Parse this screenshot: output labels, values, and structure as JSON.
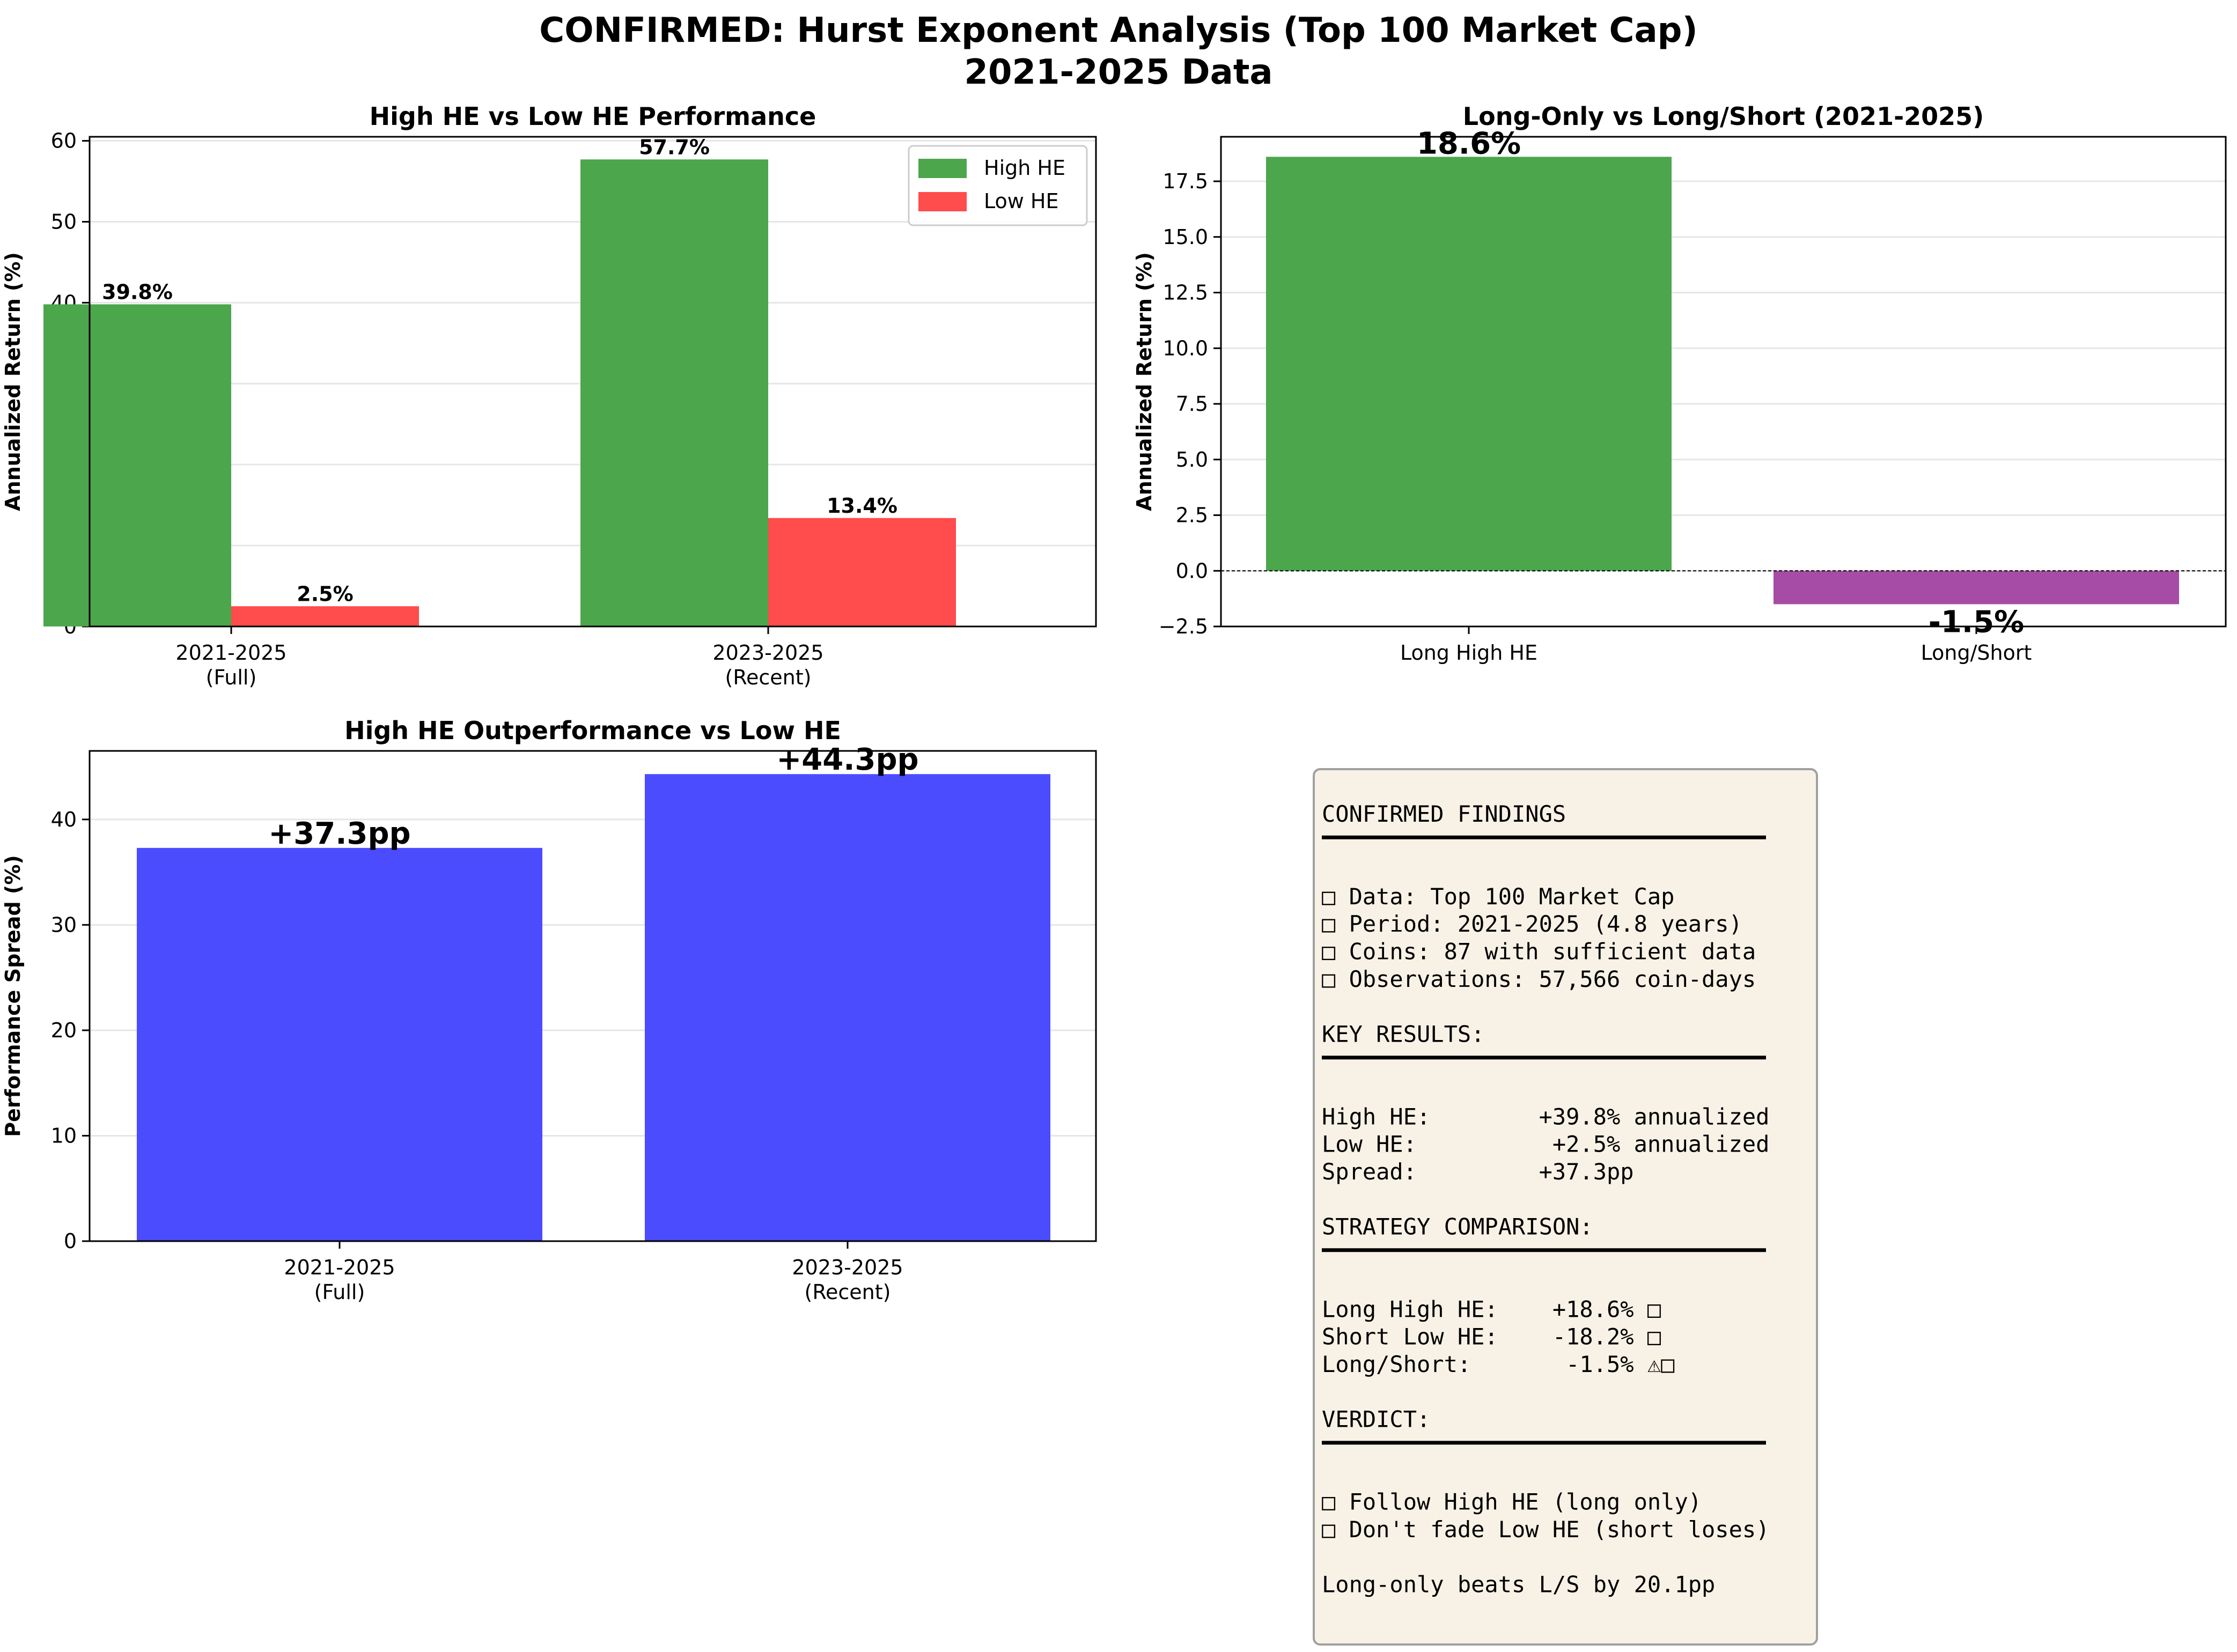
{
  "figure": {
    "title_line1": "CONFIRMED: Hurst Exponent Analysis (Top 100 Market Cap)",
    "title_line2": "2021-2025 Data"
  },
  "colors": {
    "high_he": "#4ca64c",
    "low_he": "#ff4c4c",
    "long_short": "#a64ca6",
    "spread": "#4c4cff",
    "panel_bg": "#f8f2e6",
    "panel_border": "#a0a0a0"
  },
  "chart_data": [
    {
      "id": "performance",
      "type": "bar",
      "title": "High HE vs Low HE Performance",
      "ylabel": "Annualized Return (%)",
      "xlabel": "",
      "categories": [
        "2021-2025\n(Full)",
        "2023-2025\n(Recent)"
      ],
      "series": [
        {
          "name": "High HE",
          "values": [
            39.8,
            57.7
          ],
          "labels": [
            "39.8%",
            "57.7%"
          ]
        },
        {
          "name": "Low HE",
          "values": [
            2.5,
            13.4
          ],
          "labels": [
            "2.5%",
            "13.4%"
          ]
        }
      ],
      "ylim": [
        0,
        60.5
      ],
      "yticks": [
        0,
        10,
        20,
        30,
        40,
        50,
        60
      ],
      "ytick_labels": [
        "0",
        "10",
        "20",
        "30",
        "40",
        "50",
        "60"
      ],
      "grid": "y",
      "legend": "top-right"
    },
    {
      "id": "strategy",
      "type": "bar",
      "title": "Long-Only vs Long/Short (2021-2025)",
      "ylabel": "Annualized Return (%)",
      "xlabel": "",
      "categories": [
        "Long High HE",
        "Long/Short"
      ],
      "values": [
        18.6,
        -1.5
      ],
      "labels": [
        "18.6%",
        "-1.5%"
      ],
      "ylim": [
        -2.5,
        19.5
      ],
      "yticks": [
        -2.5,
        0,
        2.5,
        5,
        7.5,
        10,
        12.5,
        15,
        17.5
      ],
      "ytick_labels": [
        "−2.5",
        "0.0",
        "2.5",
        "5.0",
        "7.5",
        "10.0",
        "12.5",
        "15.0",
        "17.5"
      ],
      "grid": "y",
      "zero_line": true
    },
    {
      "id": "spread",
      "type": "bar",
      "title": "High HE Outperformance vs Low HE",
      "ylabel": "Performance Spread (%)",
      "xlabel": "",
      "categories": [
        "2021-2025\n(Full)",
        "2023-2025\n(Recent)"
      ],
      "values": [
        37.3,
        44.3
      ],
      "labels": [
        "+37.3pp",
        "+44.3pp"
      ],
      "ylim": [
        0,
        46.5
      ],
      "yticks": [
        0,
        10,
        20,
        30,
        40
      ],
      "ytick_labels": [
        "0",
        "10",
        "20",
        "30",
        "40"
      ],
      "grid": "y"
    }
  ],
  "findings": {
    "lines": [
      {
        "kind": "text",
        "text": "CONFIRMED FINDINGS"
      },
      {
        "kind": "rule"
      },
      {
        "kind": "blank"
      },
      {
        "kind": "text",
        "text": "□ Data: Top 100 Market Cap"
      },
      {
        "kind": "text",
        "text": "□ Period: 2021-2025 (4.8 years)"
      },
      {
        "kind": "text",
        "text": "□ Coins: 87 with sufficient data"
      },
      {
        "kind": "text",
        "text": "□ Observations: 57,566 coin-days"
      },
      {
        "kind": "blank"
      },
      {
        "kind": "text",
        "text": "KEY RESULTS:"
      },
      {
        "kind": "rule"
      },
      {
        "kind": "blank"
      },
      {
        "kind": "text",
        "text": "High HE:        +39.8% annualized"
      },
      {
        "kind": "text",
        "text": "Low HE:          +2.5% annualized"
      },
      {
        "kind": "text",
        "text": "Spread:         +37.3pp"
      },
      {
        "kind": "blank"
      },
      {
        "kind": "text",
        "text": "STRATEGY COMPARISON:"
      },
      {
        "kind": "rule"
      },
      {
        "kind": "blank"
      },
      {
        "kind": "text",
        "text": "Long High HE:    +18.6% □"
      },
      {
        "kind": "text",
        "text": "Short Low HE:    -18.2% □"
      },
      {
        "kind": "text",
        "text": "Long/Short:       -1.5% ⚠□"
      },
      {
        "kind": "blank"
      },
      {
        "kind": "text",
        "text": "VERDICT:"
      },
      {
        "kind": "rule"
      },
      {
        "kind": "blank"
      },
      {
        "kind": "text",
        "text": "□ Follow High HE (long only)"
      },
      {
        "kind": "text",
        "text": "□ Don't fade Low HE (short loses)"
      },
      {
        "kind": "blank"
      },
      {
        "kind": "text",
        "text": "Long-only beats L/S by 20.1pp"
      }
    ]
  }
}
